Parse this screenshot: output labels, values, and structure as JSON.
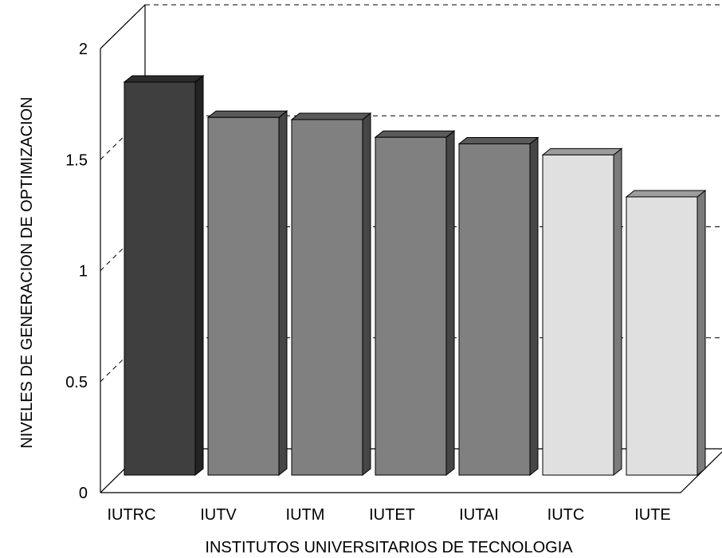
{
  "chart_data": {
    "type": "bar",
    "title": "",
    "xlabel": "INSTITUTOS UNIVERSITARIOS DE TECNOLOGIA",
    "ylabel": "NIVELES DE GENERACION DE OPTIMIZACION",
    "categories": [
      "IUTRC",
      "IUTV",
      "IUTM",
      "IUTET",
      "IUTAI",
      "IUTC",
      "IUTE"
    ],
    "values": [
      1.78,
      1.62,
      1.61,
      1.53,
      1.5,
      1.45,
      1.26
    ],
    "bar_colors": [
      "#3f3f3f",
      "#808080",
      "#808080",
      "#808080",
      "#808080",
      "#e0e0e0",
      "#e0e0e0"
    ],
    "y_ticks": [
      "0",
      "0.5",
      "1",
      "1.5",
      "2"
    ],
    "y_tick_values": [
      0,
      0.5,
      1,
      1.5,
      2
    ],
    "ylim": [
      0,
      2
    ],
    "grid": true,
    "style": "3d",
    "legend": "none"
  }
}
